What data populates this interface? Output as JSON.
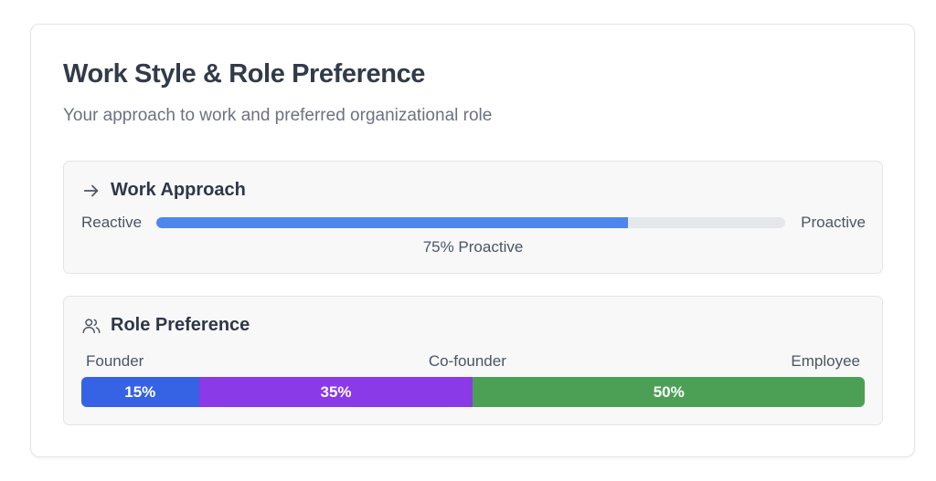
{
  "card": {
    "title": "Work Style & Role Preference",
    "subtitle": "Your approach to work and preferred organizational role"
  },
  "work_approach": {
    "icon": "arrow-right-icon",
    "title": "Work Approach",
    "left_label": "Reactive",
    "right_label": "Proactive",
    "proactive_percent": 75,
    "caption": "75% Proactive",
    "fill_color": "#4f86ec",
    "track_color": "#e5e7eb"
  },
  "role_preference": {
    "icon": "users-icon",
    "title": "Role Preference",
    "labels": [
      "Founder",
      "Co-founder",
      "Employee"
    ],
    "segments": [
      {
        "role": "Founder",
        "percent": 15,
        "label": "15%",
        "color": "#3563e3"
      },
      {
        "role": "Co-founder",
        "percent": 35,
        "label": "35%",
        "color": "#8a3ae6"
      },
      {
        "role": "Employee",
        "percent": 50,
        "label": "50%",
        "color": "#4ca055"
      }
    ]
  }
}
